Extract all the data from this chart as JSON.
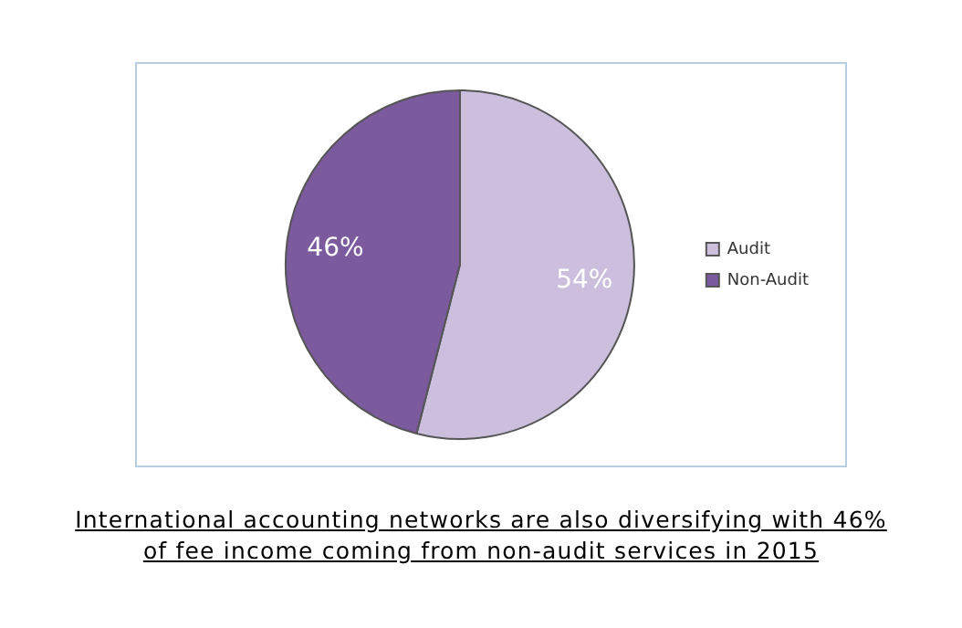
{
  "chart_data": {
    "type": "pie",
    "categories": [
      "Audit",
      "Non-Audit"
    ],
    "values": [
      54,
      46
    ],
    "colors": [
      "#cbbfdd",
      "#7b5a9e"
    ],
    "value_labels": [
      "54%",
      "46%"
    ],
    "legend": "right",
    "annotations": [
      "International accounting networks are also diversifying with 46% of fee income coming from non-audit services in 2015"
    ]
  }
}
